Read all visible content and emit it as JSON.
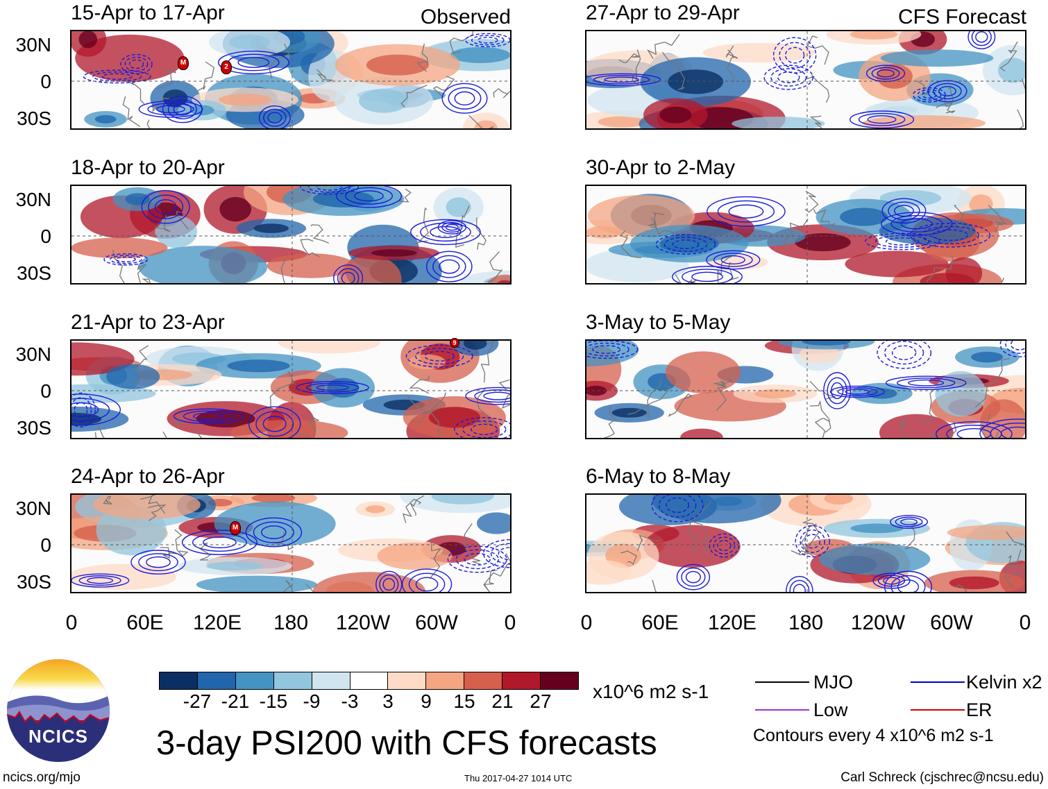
{
  "header": {
    "observed_label": "Observed",
    "forecast_label": "CFS Forecast"
  },
  "panels": [
    {
      "title": "15-Apr to 17-Apr",
      "group": "observed"
    },
    {
      "title": "18-Apr to 20-Apr",
      "group": "observed"
    },
    {
      "title": "21-Apr to 23-Apr",
      "group": "observed"
    },
    {
      "title": "24-Apr to 26-Apr",
      "group": "observed"
    },
    {
      "title": "27-Apr to 29-Apr",
      "group": "forecast"
    },
    {
      "title": "30-Apr to 2-May",
      "group": "forecast"
    },
    {
      "title": "3-May to 5-May",
      "group": "forecast"
    },
    {
      "title": "6-May to 8-May",
      "group": "forecast"
    }
  ],
  "axes": {
    "lat_labels": [
      "30N",
      "0",
      "30S"
    ],
    "lon_labels": [
      "0",
      "60E",
      "120E",
      "180",
      "120W",
      "60W",
      "0"
    ]
  },
  "colorbar": {
    "labels": [
      "-27",
      "-21",
      "-15",
      "-9",
      "-3",
      "3",
      "9",
      "15",
      "21",
      "27"
    ],
    "colors": [
      "#0b2f63",
      "#2166ac",
      "#4393c3",
      "#92c5de",
      "#d1e5f0",
      "#ffffff",
      "#fddbc7",
      "#f4a582",
      "#d6604d",
      "#b2182b",
      "#67001f"
    ],
    "units": "x10^6 m2 s-1"
  },
  "legend": {
    "items": [
      {
        "label": "MJO",
        "color": "#000000"
      },
      {
        "label": "Kelvin x2",
        "color": "#0000cc"
      },
      {
        "label": "Low",
        "color": "#9933cc"
      },
      {
        "label": "ER",
        "color": "#cc0000"
      }
    ],
    "contour_note": "Contours every 4 x10^6 m2 s-1"
  },
  "footer": {
    "main_title": "3-day PSI200 with CFS forecasts",
    "logo_text": "NCICS",
    "url": "ncics.org/mjo",
    "timestamp": "Thu 2017-04-27 1014 UTC",
    "credit": "Carl Schreck (cjschrec@ncsu.edu)"
  },
  "storm_markers": [
    "M",
    "2",
    "9",
    "M"
  ]
}
